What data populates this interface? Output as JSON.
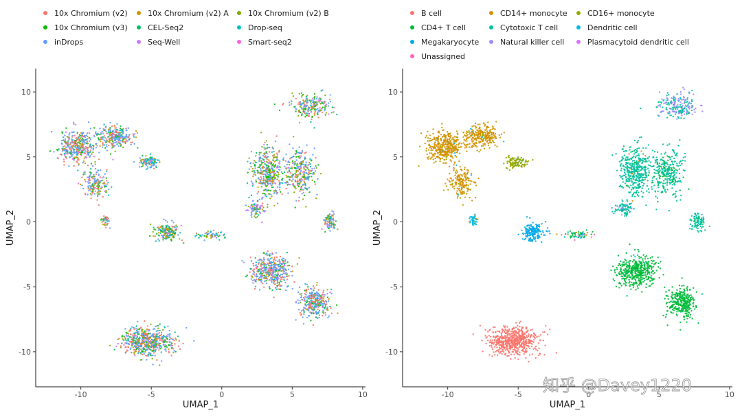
{
  "watermark": "知乎 @Davey1220",
  "chart_data": [
    {
      "type": "scatter",
      "title": "",
      "xlabel": "UMAP_1",
      "ylabel": "UMAP_2",
      "xlim": [
        -13.2,
        10.2
      ],
      "ylim": [
        -12.7,
        11.8
      ],
      "xticks": [
        -10,
        -5,
        0,
        5,
        10
      ],
      "yticks": [
        -10,
        -5,
        0,
        5,
        10
      ],
      "xtick_labels": [
        "-10",
        "-5",
        "0",
        "5",
        "10"
      ],
      "ytick_labels": [
        "-10",
        "-5",
        "0",
        "5",
        "10"
      ],
      "grid": false,
      "legend_position": "top",
      "legend": [
        {
          "name": "10x Chromium (v2)",
          "color": "#F8766D"
        },
        {
          "name": "10x Chromium (v2) A",
          "color": "#CD9600"
        },
        {
          "name": "10x Chromium (v2) B",
          "color": "#7CAE00"
        },
        {
          "name": "10x Chromium (v3)",
          "color": "#0CB702"
        },
        {
          "name": "CEL-Seq2",
          "color": "#00BE67"
        },
        {
          "name": "Drop-seq",
          "color": "#00BFC4"
        },
        {
          "name": "inDrops",
          "color": "#619CFF"
        },
        {
          "name": "Seq-Well",
          "color": "#C77CFF"
        },
        {
          "name": "Smart-seq2",
          "color": "#F564E3"
        }
      ],
      "clusters": [
        {
          "x": -10.2,
          "y": 5.8,
          "sx": 1.1,
          "sy": 1.0,
          "n": 380,
          "mix": [
            0.22,
            0.1,
            0.05,
            0.08,
            0.05,
            0.05,
            0.4,
            0.03,
            0.02
          ]
        },
        {
          "x": -7.6,
          "y": 6.6,
          "sx": 1.0,
          "sy": 0.7,
          "n": 260,
          "mix": [
            0.22,
            0.1,
            0.05,
            0.08,
            0.05,
            0.05,
            0.4,
            0.03,
            0.02
          ]
        },
        {
          "x": -9.0,
          "y": 3.0,
          "sx": 0.8,
          "sy": 1.0,
          "n": 170,
          "mix": [
            0.22,
            0.1,
            0.05,
            0.08,
            0.05,
            0.05,
            0.4,
            0.03,
            0.02
          ]
        },
        {
          "x": -5.2,
          "y": 4.6,
          "sx": 0.6,
          "sy": 0.4,
          "n": 110,
          "mix": [
            0.1,
            0.05,
            0.05,
            0.05,
            0.05,
            0.35,
            0.3,
            0.02,
            0.03
          ]
        },
        {
          "x": -8.2,
          "y": 0.1,
          "sx": 0.25,
          "sy": 0.35,
          "n": 40,
          "mix": [
            0.3,
            0.1,
            0.05,
            0.05,
            0.05,
            0.05,
            0.35,
            0.03,
            0.02
          ]
        },
        {
          "x": -3.9,
          "y": -0.8,
          "sx": 0.7,
          "sy": 0.6,
          "n": 170,
          "mix": [
            0.1,
            0.15,
            0.18,
            0.12,
            0.12,
            0.08,
            0.2,
            0.03,
            0.02
          ]
        },
        {
          "x": -0.8,
          "y": -1.0,
          "sx": 0.9,
          "sy": 0.25,
          "n": 60,
          "mix": [
            0.1,
            0.1,
            0.1,
            0.1,
            0.1,
            0.1,
            0.3,
            0.05,
            0.05
          ]
        },
        {
          "x": 6.3,
          "y": 8.9,
          "sx": 1.2,
          "sy": 0.8,
          "n": 210,
          "mix": [
            0.15,
            0.05,
            0.2,
            0.1,
            0.1,
            0.05,
            0.3,
            0.03,
            0.02
          ]
        },
        {
          "x": 3.3,
          "y": 3.8,
          "sx": 0.9,
          "sy": 1.6,
          "n": 400,
          "mix": [
            0.15,
            0.05,
            0.2,
            0.1,
            0.1,
            0.05,
            0.3,
            0.03,
            0.02
          ]
        },
        {
          "x": 5.6,
          "y": 3.8,
          "sx": 0.9,
          "sy": 1.5,
          "n": 280,
          "mix": [
            0.15,
            0.05,
            0.2,
            0.1,
            0.1,
            0.05,
            0.3,
            0.03,
            0.02
          ]
        },
        {
          "x": 7.7,
          "y": 0.0,
          "sx": 0.45,
          "sy": 0.6,
          "n": 90,
          "mix": [
            0.15,
            0.05,
            0.2,
            0.1,
            0.1,
            0.05,
            0.3,
            0.03,
            0.02
          ]
        },
        {
          "x": 2.5,
          "y": 1.0,
          "sx": 0.5,
          "sy": 0.5,
          "n": 90,
          "mix": [
            0.1,
            0.05,
            0.1,
            0.05,
            0.05,
            0.05,
            0.3,
            0.28,
            0.02
          ]
        },
        {
          "x": 3.4,
          "y": -3.8,
          "sx": 1.2,
          "sy": 1.0,
          "n": 440,
          "mix": [
            0.28,
            0.05,
            0.05,
            0.1,
            0.05,
            0.05,
            0.38,
            0.03,
            0.01
          ]
        },
        {
          "x": 6.6,
          "y": -6.2,
          "sx": 0.9,
          "sy": 1.0,
          "n": 300,
          "mix": [
            0.28,
            0.05,
            0.05,
            0.1,
            0.05,
            0.05,
            0.38,
            0.03,
            0.01
          ]
        },
        {
          "x": -5.3,
          "y": -9.2,
          "sx": 1.6,
          "sy": 0.9,
          "n": 600,
          "mix": [
            0.25,
            0.06,
            0.1,
            0.1,
            0.1,
            0.08,
            0.26,
            0.03,
            0.02
          ]
        }
      ]
    },
    {
      "type": "scatter",
      "title": "",
      "xlabel": "UMAP_1",
      "ylabel": "UMAP_2",
      "xlim": [
        -13.2,
        10.2
      ],
      "ylim": [
        -12.7,
        11.8
      ],
      "xticks": [
        -10,
        -5,
        0,
        5,
        10
      ],
      "yticks": [
        -10,
        -5,
        0,
        5,
        10
      ],
      "xtick_labels": [
        "-10",
        "-5",
        "0",
        "5",
        "10"
      ],
      "ytick_labels": [
        "-10",
        "-5",
        "0",
        "5",
        "10"
      ],
      "grid": false,
      "legend_position": "top",
      "legend": [
        {
          "name": "B cell",
          "color": "#F8766D"
        },
        {
          "name": "CD14+ monocyte",
          "color": "#D39200"
        },
        {
          "name": "CD16+ monocyte",
          "color": "#93AA00"
        },
        {
          "name": "CD4+ T cell",
          "color": "#00BA38"
        },
        {
          "name": "Cytotoxic T cell",
          "color": "#00C19F"
        },
        {
          "name": "Dendritic cell",
          "color": "#00B9E3"
        },
        {
          "name": "Megakaryocyte",
          "color": "#00A9E9"
        },
        {
          "name": "Natural killer cell",
          "color": "#9F8CFF"
        },
        {
          "name": "Plasmacytoid dendritic cell",
          "color": "#DB72FB"
        },
        {
          "name": "Unassigned",
          "color": "#FF61C3"
        }
      ],
      "clusters": [
        {
          "x": -10.2,
          "y": 5.8,
          "sx": 1.1,
          "sy": 1.0,
          "n": 380,
          "mix": [
            0,
            0.95,
            0.03,
            0,
            0,
            0.02,
            0,
            0,
            0,
            0
          ]
        },
        {
          "x": -7.6,
          "y": 6.6,
          "sx": 1.0,
          "sy": 0.7,
          "n": 260,
          "mix": [
            0,
            0.95,
            0.03,
            0,
            0,
            0.02,
            0,
            0,
            0,
            0
          ]
        },
        {
          "x": -9.0,
          "y": 3.0,
          "sx": 0.8,
          "sy": 1.0,
          "n": 170,
          "mix": [
            0,
            0.95,
            0.03,
            0,
            0,
            0.02,
            0,
            0,
            0,
            0
          ]
        },
        {
          "x": -5.2,
          "y": 4.6,
          "sx": 0.6,
          "sy": 0.4,
          "n": 110,
          "mix": [
            0,
            0.05,
            0.93,
            0,
            0,
            0.02,
            0,
            0,
            0,
            0
          ]
        },
        {
          "x": -8.2,
          "y": 0.1,
          "sx": 0.25,
          "sy": 0.35,
          "n": 40,
          "mix": [
            0,
            0.2,
            0,
            0,
            0,
            0.8,
            0,
            0,
            0,
            0
          ]
        },
        {
          "x": -3.9,
          "y": -0.8,
          "sx": 0.7,
          "sy": 0.6,
          "n": 170,
          "mix": [
            0,
            0,
            0,
            0,
            0,
            0.05,
            0.95,
            0,
            0,
            0
          ]
        },
        {
          "x": -0.8,
          "y": -1.0,
          "sx": 0.9,
          "sy": 0.25,
          "n": 60,
          "mix": [
            0,
            0.1,
            0,
            0.45,
            0.2,
            0,
            0.15,
            0,
            0,
            0.1
          ]
        },
        {
          "x": 6.3,
          "y": 8.9,
          "sx": 1.2,
          "sy": 0.8,
          "n": 210,
          "mix": [
            0,
            0,
            0,
            0,
            0.55,
            0,
            0,
            0.45,
            0,
            0
          ]
        },
        {
          "x": 3.3,
          "y": 3.8,
          "sx": 0.9,
          "sy": 1.6,
          "n": 400,
          "mix": [
            0,
            0.02,
            0,
            0.05,
            0.93,
            0,
            0,
            0,
            0,
            0
          ]
        },
        {
          "x": 5.6,
          "y": 3.8,
          "sx": 0.9,
          "sy": 1.5,
          "n": 280,
          "mix": [
            0,
            0,
            0,
            0.25,
            0.75,
            0,
            0,
            0,
            0,
            0
          ]
        },
        {
          "x": 7.7,
          "y": 0.0,
          "sx": 0.45,
          "sy": 0.6,
          "n": 90,
          "mix": [
            0,
            0,
            0,
            0.1,
            0.9,
            0,
            0,
            0,
            0,
            0
          ]
        },
        {
          "x": 2.5,
          "y": 1.0,
          "sx": 0.5,
          "sy": 0.5,
          "n": 90,
          "mix": [
            0,
            0,
            0,
            0,
            0.85,
            0,
            0,
            0.15,
            0,
            0
          ]
        },
        {
          "x": 3.4,
          "y": -3.8,
          "sx": 1.2,
          "sy": 1.0,
          "n": 440,
          "mix": [
            0,
            0,
            0,
            0.97,
            0.03,
            0,
            0,
            0,
            0,
            0
          ]
        },
        {
          "x": 6.6,
          "y": -6.2,
          "sx": 0.9,
          "sy": 1.0,
          "n": 300,
          "mix": [
            0,
            0,
            0,
            0.97,
            0.03,
            0,
            0,
            0,
            0,
            0
          ]
        },
        {
          "x": -5.3,
          "y": -9.2,
          "sx": 1.6,
          "sy": 0.9,
          "n": 600,
          "mix": [
            1,
            0,
            0,
            0,
            0,
            0,
            0,
            0,
            0,
            0
          ]
        }
      ]
    }
  ]
}
